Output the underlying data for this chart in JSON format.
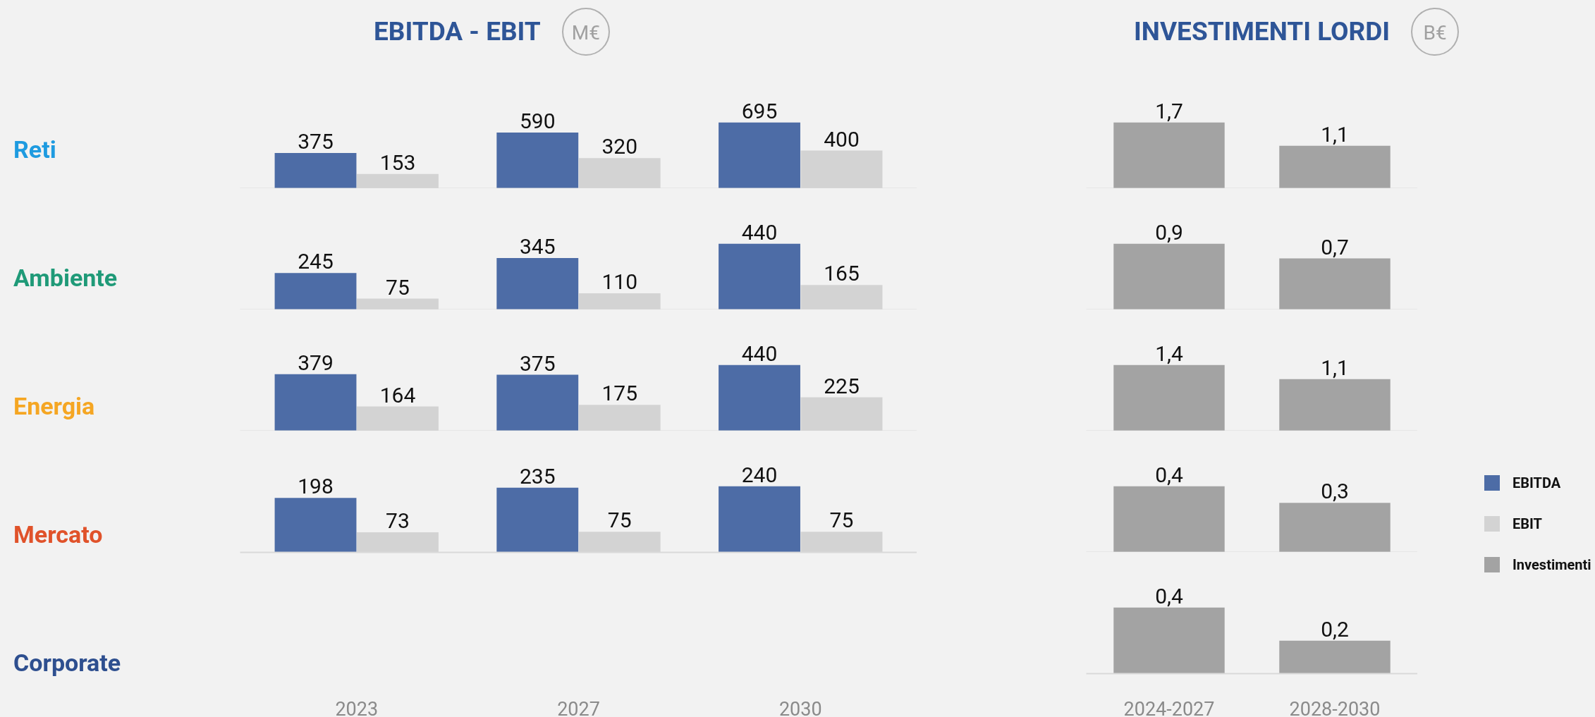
{
  "chart_data": [
    {
      "type": "bar",
      "title": "EBITDA - EBIT",
      "subtitle": "M€",
      "ylabel": "Reti",
      "categories": [
        null,
        null,
        null
      ],
      "series": [
        {
          "name": "EBITDA",
          "color": "#4d6ca6",
          "values": [
            375,
            590,
            695
          ]
        },
        {
          "name": "EBIT",
          "color": "#d3d3d3",
          "values": [
            153,
            320,
            400
          ]
        }
      ],
      "data_labels": true,
      "tick_labels": false,
      "legend": "right"
    },
    {
      "type": "bar",
      "ylabel": "Ambiente",
      "categories": [
        null,
        null,
        null
      ],
      "series": [
        {
          "color": "#4d6ca6",
          "values": [
            245,
            345,
            440
          ]
        },
        {
          "color": "#d3d3d3",
          "values": [
            75,
            110,
            165
          ]
        }
      ],
      "data_labels": true,
      "tick_labels": false
    },
    {
      "type": "bar",
      "ylabel": "Energia",
      "categories": [
        null,
        null,
        null
      ],
      "series": [
        {
          "color": "#4d6ca6",
          "values": [
            379,
            375,
            440
          ]
        },
        {
          "color": "#d3d3d3",
          "values": [
            164,
            175,
            225
          ]
        }
      ],
      "data_labels": true,
      "tick_labels": false
    },
    {
      "type": "bar",
      "ylabel": "Mercato",
      "categories": [
        "2023",
        "2027",
        "2030"
      ],
      "series": [
        {
          "color": "#4d6ca6",
          "values": [
            198,
            235,
            240
          ]
        },
        {
          "color": "#d3d3d3",
          "values": [
            73,
            75,
            75
          ]
        }
      ],
      "data_labels": true,
      "tick_labels": "x"
    },
    {
      "type": "bar",
      "title": "INVESTIMENTI LORDI",
      "subtitle": "B€",
      "categories": [
        null,
        null
      ],
      "series": [
        {
          "name": "Investimenti",
          "color": "#a3a3a3",
          "values": [
            1.7,
            1.1
          ],
          "value_labels": [
            "1,7",
            "1,1"
          ]
        }
      ],
      "tick_labels": false,
      "legend": "right"
    },
    {
      "type": "bar",
      "categories": [
        null,
        null
      ],
      "series": [
        {
          "color": "#a3a3a3",
          "values": [
            0.9,
            0.7
          ],
          "value_labels": [
            "0,9",
            "0,7"
          ]
        }
      ],
      "tick_labels": false
    },
    {
      "type": "bar",
      "categories": [
        null,
        null
      ],
      "series": [
        {
          "color": "#a3a3a3",
          "values": [
            1.4,
            1.1
          ],
          "value_labels": [
            "1,4",
            "1,1"
          ]
        }
      ],
      "tick_labels": false
    },
    {
      "type": "bar",
      "categories": [
        null,
        null
      ],
      "series": [
        {
          "color": "#a3a3a3",
          "values": [
            0.4,
            0.3
          ],
          "value_labels": [
            "0,4",
            "0,3"
          ]
        }
      ],
      "tick_labels": false
    },
    {
      "type": "bar",
      "ylabel": "Corporate",
      "categories": [
        "2024-2027",
        "2028-2030"
      ],
      "series": [
        {
          "color": "#a3a3a3",
          "values": [
            0.4,
            0.2
          ],
          "value_labels": [
            "0,4",
            "0,2"
          ]
        }
      ],
      "tick_labels": "x"
    }
  ]
}
